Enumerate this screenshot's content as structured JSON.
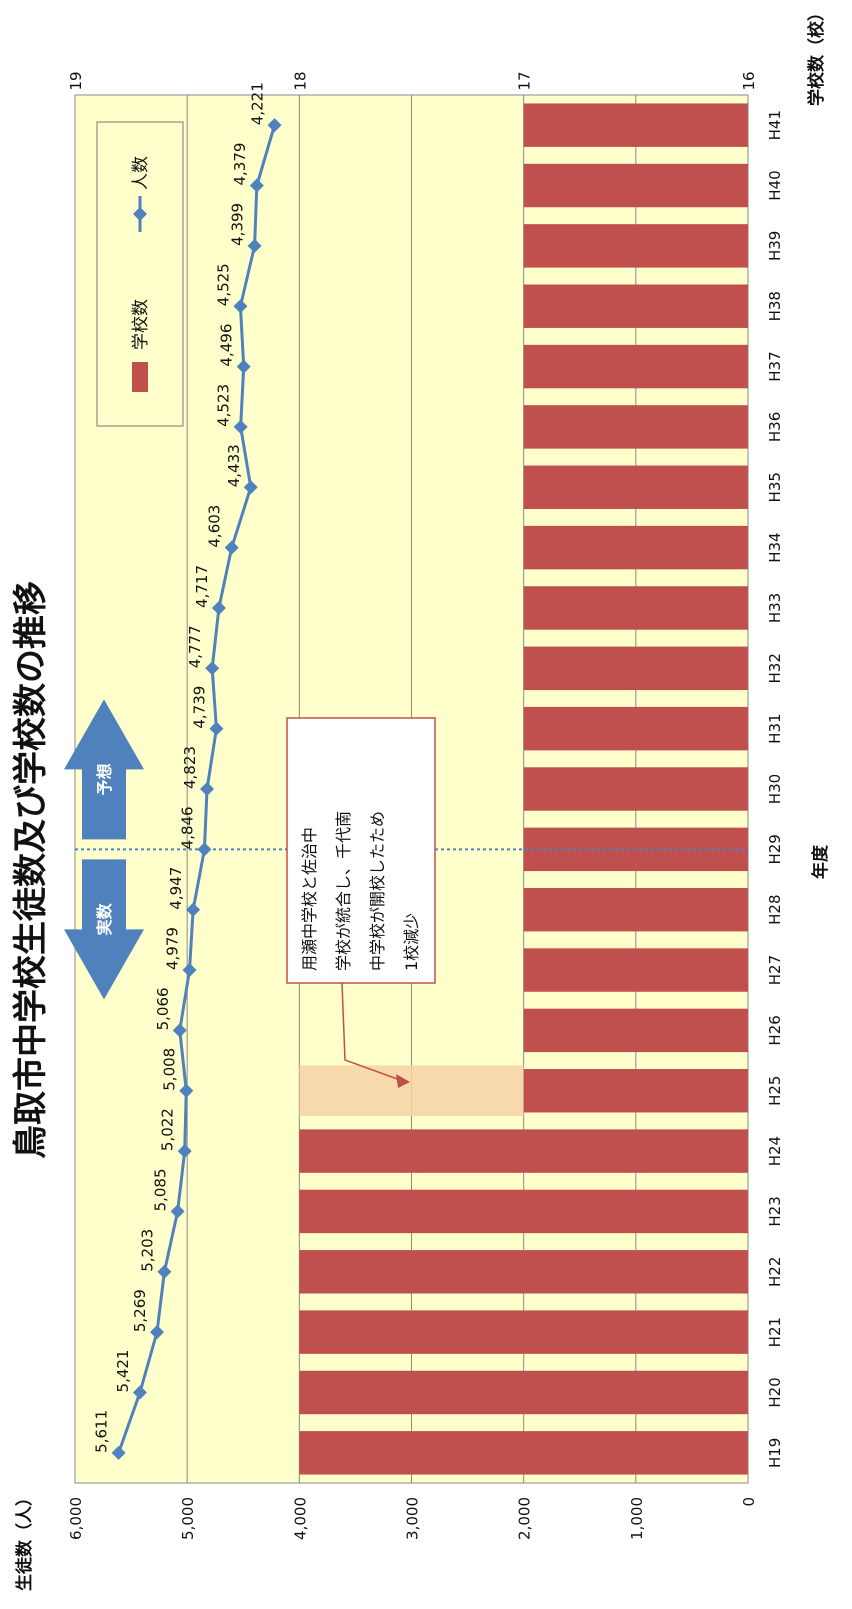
{
  "chart_data": {
    "type": "bar+line",
    "title": "鳥取市中学校生徒数及び学校数の推移",
    "left_axis_label": "生徒数（人）",
    "right_axis_label": "学校数（校）",
    "x_axis_label": "年度",
    "left_ylim": [
      0,
      6000
    ],
    "left_ticks": [
      "0",
      "1,000",
      "2,000",
      "3,000",
      "4,000",
      "5,000",
      "6,000"
    ],
    "right_ylim": [
      16,
      19
    ],
    "right_ticks": [
      "16",
      "17",
      "18",
      "19"
    ],
    "categories": [
      "H19",
      "H20",
      "H21",
      "H22",
      "H23",
      "H24",
      "H25",
      "H26",
      "H27",
      "H28",
      "H29",
      "H30",
      "H31",
      "H32",
      "H33",
      "H34",
      "H35",
      "H36",
      "H37",
      "H38",
      "H39",
      "H40",
      "H41"
    ],
    "series": [
      {
        "name": "学校数",
        "kind": "bar",
        "axis": "right",
        "color": "#c0504d",
        "values": [
          18,
          18,
          18,
          18,
          18,
          18,
          17,
          17,
          17,
          17,
          17,
          17,
          17,
          17,
          17,
          17,
          17,
          17,
          17,
          17,
          17,
          17,
          17
        ]
      },
      {
        "name": "人数",
        "kind": "line",
        "axis": "left",
        "color": "#4f81bd",
        "values": [
          5611,
          5421,
          5269,
          5203,
          5085,
          5022,
          5008,
          5066,
          4979,
          4947,
          4846,
          4823,
          4739,
          4777,
          4717,
          4603,
          4433,
          4523,
          4496,
          4525,
          4399,
          4379,
          4221
        ],
        "labels": [
          "5,611",
          "5,421",
          "5,269",
          "5,203",
          "5,085",
          "5,022",
          "5,008",
          "5,066",
          "4,979",
          "4,947",
          "4,846",
          "4,823",
          "4,739",
          "4,777",
          "4,717",
          "4,603",
          "4,433",
          "4,523",
          "4,496",
          "4,525",
          "4,399",
          "4,379",
          "4,221"
        ]
      }
    ],
    "highlight_category": "H25",
    "divider_after": "H29",
    "legend": {
      "items": [
        "学校数",
        "人数"
      ],
      "placement": "top-right"
    },
    "arrows": {
      "actual": "実数",
      "forecast": "予想"
    },
    "annotation": "用瀬中学校と佐治中学校が統合し、千代南中学校が開校したため1校減少",
    "annotation_lines": [
      "用瀬中学校と佐治中",
      "学校が統合し、千代南",
      "中学校が開校したため",
      "1校減少"
    ],
    "plot_bg": "#ffffcc",
    "grid": true
  }
}
